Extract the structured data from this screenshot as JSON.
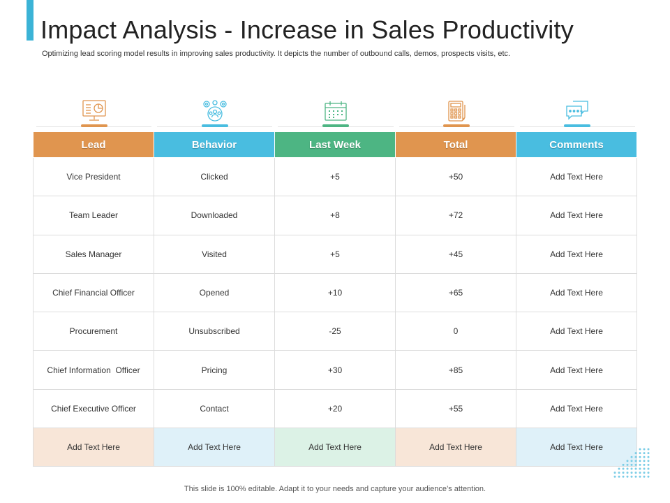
{
  "title": "Impact Analysis - Increase in Sales Productivity",
  "subtitle": "Optimizing lead scoring model results in improving sales productivity. It depicts the number of outbound calls, demos, prospects visits, etc.",
  "footer": "This slide is 100% editable. Adapt it to your needs and capture your audience’s attention.",
  "colors": {
    "accent": "#3bb3d6",
    "orange": "#e0954f",
    "blue": "#49bde0",
    "green": "#4db583",
    "orange_light": "#f8e6d8",
    "blue_light": "#dff1f9",
    "green_light": "#dcf2e6"
  },
  "icons": [
    "monitor-chart-icon",
    "team-gears-icon",
    "calendar-icon",
    "calculator-icon",
    "chat-bubbles-icon"
  ],
  "table": {
    "headers": [
      "Lead",
      "Behavior",
      "Last Week",
      "Total",
      "Comments"
    ],
    "rows": [
      [
        "Vice President",
        "Clicked",
        "+5",
        "+50",
        "Add Text Here"
      ],
      [
        "Team Leader",
        "Downloaded",
        "+8",
        "+72",
        "Add Text Here"
      ],
      [
        "Sales Manager",
        "Visited",
        "+5",
        "+45",
        "Add Text Here"
      ],
      [
        "Chief Financial Officer",
        "Opened",
        "+10",
        "+65",
        "Add Text Here"
      ],
      [
        "Procurement",
        "Unsubscribed",
        "-25",
        "0",
        "Add Text Here"
      ],
      [
        "Chief Information  Officer",
        "Pricing",
        "+30",
        "+85",
        "Add Text Here"
      ],
      [
        "Chief Executive Officer",
        "Contact",
        "+20",
        "+55",
        "Add Text Here"
      ]
    ],
    "footer_row": [
      "Add Text Here",
      "Add Text Here",
      "Add Text Here",
      "Add Text Here",
      "Add Text Here"
    ]
  }
}
